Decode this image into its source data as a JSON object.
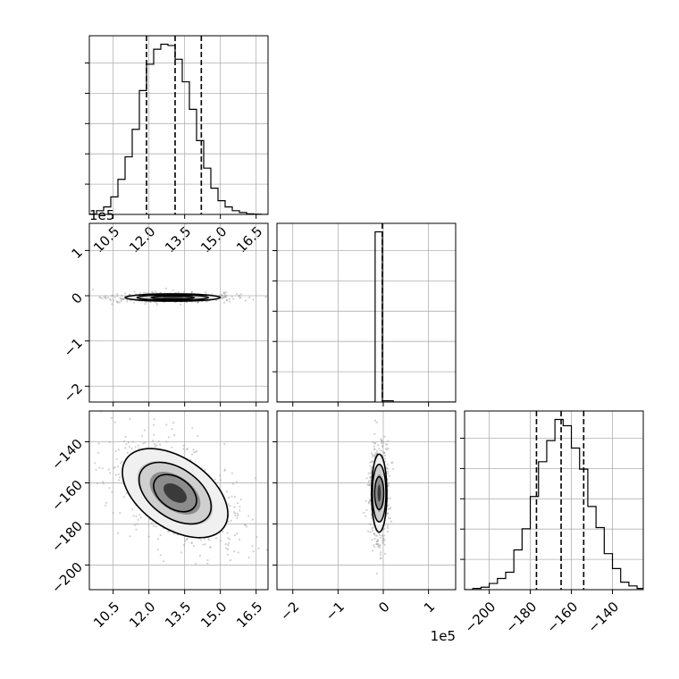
{
  "chart_data": {
    "type": "corner",
    "panels": [
      {
        "id": "p00",
        "type": "histogram",
        "param_index": 0,
        "xlim": [
          9.5,
          17.0
        ],
        "xticks": [
          10.5,
          12.0,
          13.5,
          15.0,
          16.5
        ],
        "x_tick_labels": [
          "10.5",
          "12.0",
          "13.5",
          "15.0",
          "16.5"
        ],
        "quantiles": [
          11.9,
          13.1,
          14.2
        ],
        "bins": [
          9.5,
          9.8,
          10.1,
          10.4,
          10.7,
          11.0,
          11.3,
          11.6,
          11.9,
          12.2,
          12.5,
          12.8,
          13.1,
          13.4,
          13.7,
          14.0,
          14.3,
          14.6,
          14.9,
          15.2,
          15.5,
          15.8,
          16.1,
          16.4,
          16.7,
          17.0
        ],
        "counts": [
          0.3,
          3,
          6,
          14,
          28,
          46,
          68,
          99,
          120,
          132,
          136,
          135,
          124,
          106,
          84,
          59,
          37,
          21,
          11,
          6,
          3,
          1.5,
          0.5,
          0.2,
          0
        ]
      },
      {
        "id": "p10",
        "type": "hist2d",
        "x_param": 0,
        "y_param": 1,
        "xlim": [
          9.5,
          17.0
        ],
        "ylim": [
          -2.35,
          1.6
        ],
        "xticks": [
          10.5,
          12.0,
          13.5,
          15.0,
          16.5
        ],
        "yticks": [
          -2,
          -1,
          0,
          1
        ],
        "y_tick_labels": [
          "−2",
          "−1",
          "0",
          "1"
        ],
        "y_offset_label": "1e5",
        "center": [
          13.0,
          -0.04
        ],
        "contours": [
          {
            "level": 0.39,
            "rx": 0.9,
            "ry": 0.035
          },
          {
            "level": 0.86,
            "rx": 1.5,
            "ry": 0.06
          },
          {
            "level": 0.99,
            "rx": 2.0,
            "ry": 0.08
          }
        ]
      },
      {
        "id": "p11",
        "type": "histogram",
        "param_index": 1,
        "xlim": [
          -2.35,
          1.6
        ],
        "xticks": [
          -2,
          -1,
          0,
          1
        ],
        "quantiles": [
          -0.02
        ],
        "bins": [
          -2.35,
          -0.18,
          -0.02,
          0.22,
          1.6
        ],
        "counts": [
          0,
          140,
          1,
          0
        ]
      },
      {
        "id": "p20",
        "type": "hist2d",
        "x_param": 0,
        "y_param": 2,
        "xlim": [
          9.5,
          17.0
        ],
        "ylim": [
          -212,
          -125
        ],
        "xticks": [
          10.5,
          12.0,
          13.5,
          15.0,
          16.5
        ],
        "x_tick_labels": [
          "10.5",
          "12.0",
          "13.5",
          "15.0",
          "16.5"
        ],
        "yticks": [
          -200,
          -180,
          -160,
          -140
        ],
        "y_tick_labels": [
          "−200",
          "−180",
          "−160",
          "−140"
        ],
        "center": [
          13.1,
          -165
        ],
        "contours": [
          {
            "level": 0.39,
            "rx": 1.0,
            "ry": 7.5
          },
          {
            "level": 0.86,
            "rx": 1.7,
            "ry": 12
          },
          {
            "level": 0.99,
            "rx": 2.5,
            "ry": 17
          }
        ]
      },
      {
        "id": "p21",
        "type": "hist2d",
        "x_param": 1,
        "y_param": 2,
        "xlim": [
          -2.35,
          1.6
        ],
        "ylim": [
          -212,
          -125
        ],
        "xticks": [
          -2,
          -1,
          0,
          1
        ],
        "x_tick_labels": [
          "−2",
          "−1",
          "0",
          "1"
        ],
        "x_offset_label": "1e5",
        "yticks": [
          -200,
          -180,
          -160,
          -140
        ],
        "center": [
          -0.09,
          -165
        ],
        "contours": [
          {
            "level": 0.39,
            "rx": 0.1,
            "ry": 8
          },
          {
            "level": 0.86,
            "rx": 0.15,
            "ry": 14
          },
          {
            "level": 0.99,
            "rx": 0.17,
            "ry": 19
          }
        ]
      },
      {
        "id": "p22",
        "type": "histogram",
        "param_index": 2,
        "xlim": [
          -212,
          -125
        ],
        "xticks": [
          -200,
          -180,
          -160,
          -140
        ],
        "x_tick_labels": [
          "−200",
          "−180",
          "−160",
          "−140"
        ],
        "quantiles": [
          -177,
          -165,
          -154
        ],
        "bins": [
          -212,
          -208,
          -204,
          -200,
          -196,
          -192,
          -188,
          -184,
          -180,
          -176,
          -172,
          -168,
          -164,
          -160,
          -156,
          -152,
          -148,
          -144,
          -140,
          -136,
          -132,
          -128,
          -125
        ],
        "counts": [
          0,
          1,
          2,
          5,
          9,
          14,
          32,
          49,
          75,
          103,
          120,
          137,
          132,
          114,
          97,
          67,
          50,
          29,
          17,
          6,
          3,
          1
        ]
      }
    ]
  }
}
